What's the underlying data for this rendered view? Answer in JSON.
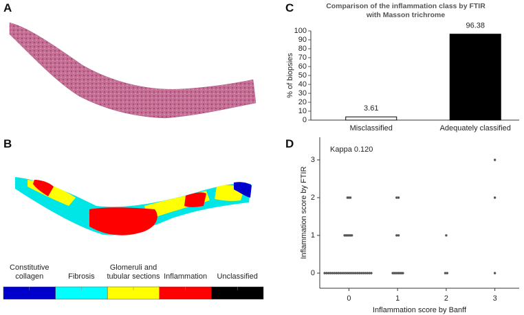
{
  "panels": [
    "A",
    "B",
    "C",
    "D"
  ],
  "panel_b": {
    "legend": [
      {
        "label": "Constitutive collagen",
        "color": "#0000cc"
      },
      {
        "label": "Fibrosis",
        "color": "#00ffff"
      },
      {
        "label": "Glomeruli and tubular sections",
        "color": "#ffff00"
      },
      {
        "label": "Inflammation",
        "color": "#ff0000"
      },
      {
        "label": "Unclassified",
        "color": "#000000"
      }
    ]
  },
  "chart_data": [
    {
      "type": "bar",
      "title": "Comparison of the inflammation class by FTIR with Masson trichrome",
      "y_label": "% of biopsies",
      "categories": [
        "Misclassified",
        "Adequately classified"
      ],
      "values": [
        3.61,
        96.38
      ],
      "colors": [
        "#ffffff",
        "#000000"
      ],
      "ylim": [
        0,
        100
      ],
      "yticks": [
        0,
        10,
        20,
        30,
        40,
        50,
        60,
        70,
        80,
        90,
        100
      ]
    },
    {
      "type": "scatter",
      "annotation": "Kappa 0.120",
      "x_label": "Inflammation score by Banff",
      "y_label": "Inflammation score by FTIR",
      "series": [
        {
          "color": "#555555",
          "x": [
            -0.5,
            -0.46,
            -0.42,
            -0.38,
            -0.34,
            -0.3,
            -0.26,
            -0.22,
            -0.18,
            -0.14,
            -0.1,
            -0.06,
            -0.02,
            0.02,
            0.06,
            0.1,
            0.14,
            0.18,
            0.22,
            0.26,
            0.3,
            0.34,
            0.38,
            0.42,
            0.46,
            -0.09,
            -0.06,
            -0.03,
            0,
            0.03,
            0.06,
            -0.03,
            0,
            0.03,
            0.9,
            0.93,
            0.96,
            0.99,
            1.02,
            1.05,
            1.08,
            1.11,
            0.98,
            1.02,
            0.98,
            1.02,
            1.98,
            2.02,
            2,
            3,
            3,
            3
          ],
          "y": [
            0,
            0,
            0,
            0,
            0,
            0,
            0,
            0,
            0,
            0,
            0,
            0,
            0,
            0,
            0,
            0,
            0,
            0,
            0,
            0,
            0,
            0,
            0,
            0,
            0,
            1,
            1,
            1,
            1,
            1,
            1,
            2,
            2,
            2,
            0,
            0,
            0,
            0,
            0,
            0,
            0,
            0,
            1,
            1,
            2,
            2,
            0,
            0,
            1,
            0,
            2,
            3
          ]
        }
      ],
      "xlim": [
        -0.6,
        3.5
      ],
      "xticks": [
        0,
        1,
        2,
        3
      ],
      "ylim": [
        -0.4,
        3.6
      ],
      "yticks": [
        0,
        1,
        2,
        3
      ]
    }
  ]
}
